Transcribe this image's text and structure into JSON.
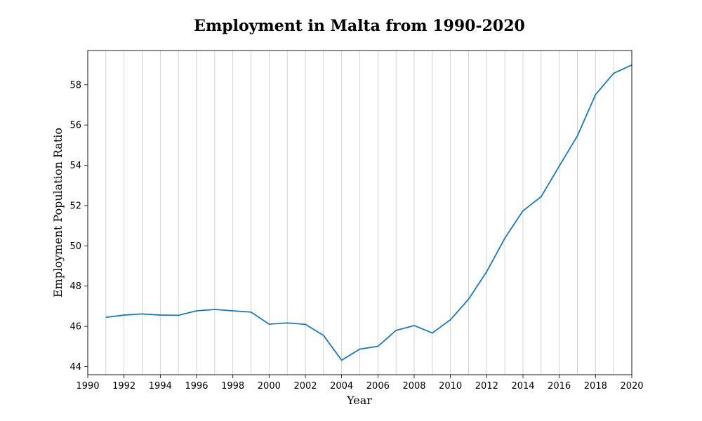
{
  "chart_data": {
    "type": "line",
    "title": "Employment in Malta from 1990-2020",
    "xlabel": "Year",
    "ylabel": "Employment Population Ratio",
    "xlim": [
      1990,
      2020
    ],
    "ylim": [
      43.6,
      59.7
    ],
    "x_ticks": [
      1990,
      1992,
      1994,
      1996,
      1998,
      2000,
      2002,
      2004,
      2006,
      2008,
      2010,
      2012,
      2014,
      2016,
      2018,
      2020
    ],
    "y_ticks": [
      44,
      46,
      48,
      50,
      52,
      54,
      56,
      58
    ],
    "grid": "vertical lines at every year",
    "line_color": "#1f77b4",
    "series": [
      {
        "x": [
          1991,
          1992,
          1993,
          1994,
          1995,
          1996,
          1997,
          1998,
          1999,
          2000,
          2001,
          2002,
          2003,
          2004,
          2005,
          2006,
          2007,
          2008,
          2009,
          2010,
          2011,
          2012,
          2013,
          2014,
          2015,
          2016,
          2017,
          2018,
          2019,
          2020
        ],
        "values": [
          46.45,
          46.56,
          46.62,
          46.56,
          46.55,
          46.77,
          46.84,
          46.77,
          46.71,
          46.11,
          46.17,
          46.1,
          45.55,
          44.32,
          44.87,
          45.01,
          45.8,
          46.04,
          45.67,
          46.33,
          47.35,
          48.72,
          50.38,
          51.74,
          52.44,
          53.96,
          55.46,
          57.51,
          58.57,
          58.98
        ]
      }
    ]
  }
}
